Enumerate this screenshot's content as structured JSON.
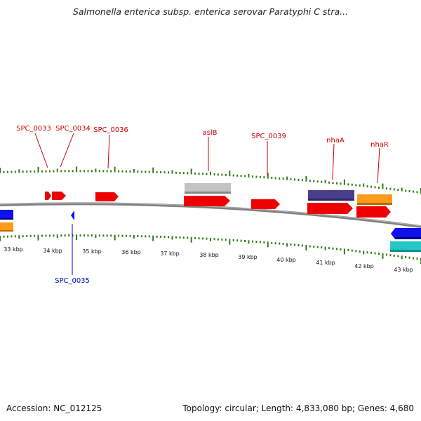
{
  "header": {
    "title": "Salmonella enterica subsp. enterica serovar Paratyphi C stra..."
  },
  "footer": {
    "accession": "Accession: NC_012125",
    "topology": "Topology: circular; Length: 4,833,080 bp; Genes: 4,680"
  },
  "colors": {
    "background": "#ffffff",
    "backbone": "#808080",
    "tick": "#2e7d12",
    "forward_gene": "#ee0000",
    "reverse_gene": "#1010ee",
    "rna_gene": "#c0c0c0",
    "cog_purple": "#4a3f8c",
    "cog_orange": "#ff9a1a",
    "cog_cyan": "#22c8c8"
  },
  "kbp_labels": [
    "33 kbp",
    "34 kbp",
    "35 kbp",
    "36 kbp",
    "37 kbp",
    "38 kbp",
    "39 kbp",
    "40 kbp",
    "41 kbp",
    "42 kbp",
    "43 kbp"
  ],
  "gene_labels_top": [
    "SPC_0033",
    "SPC_0034",
    "SPC_0036",
    "aslB",
    "SPC_0039",
    "nhaA",
    "nhaR"
  ],
  "gene_labels_bottom": [
    "SPC_0035"
  ]
}
